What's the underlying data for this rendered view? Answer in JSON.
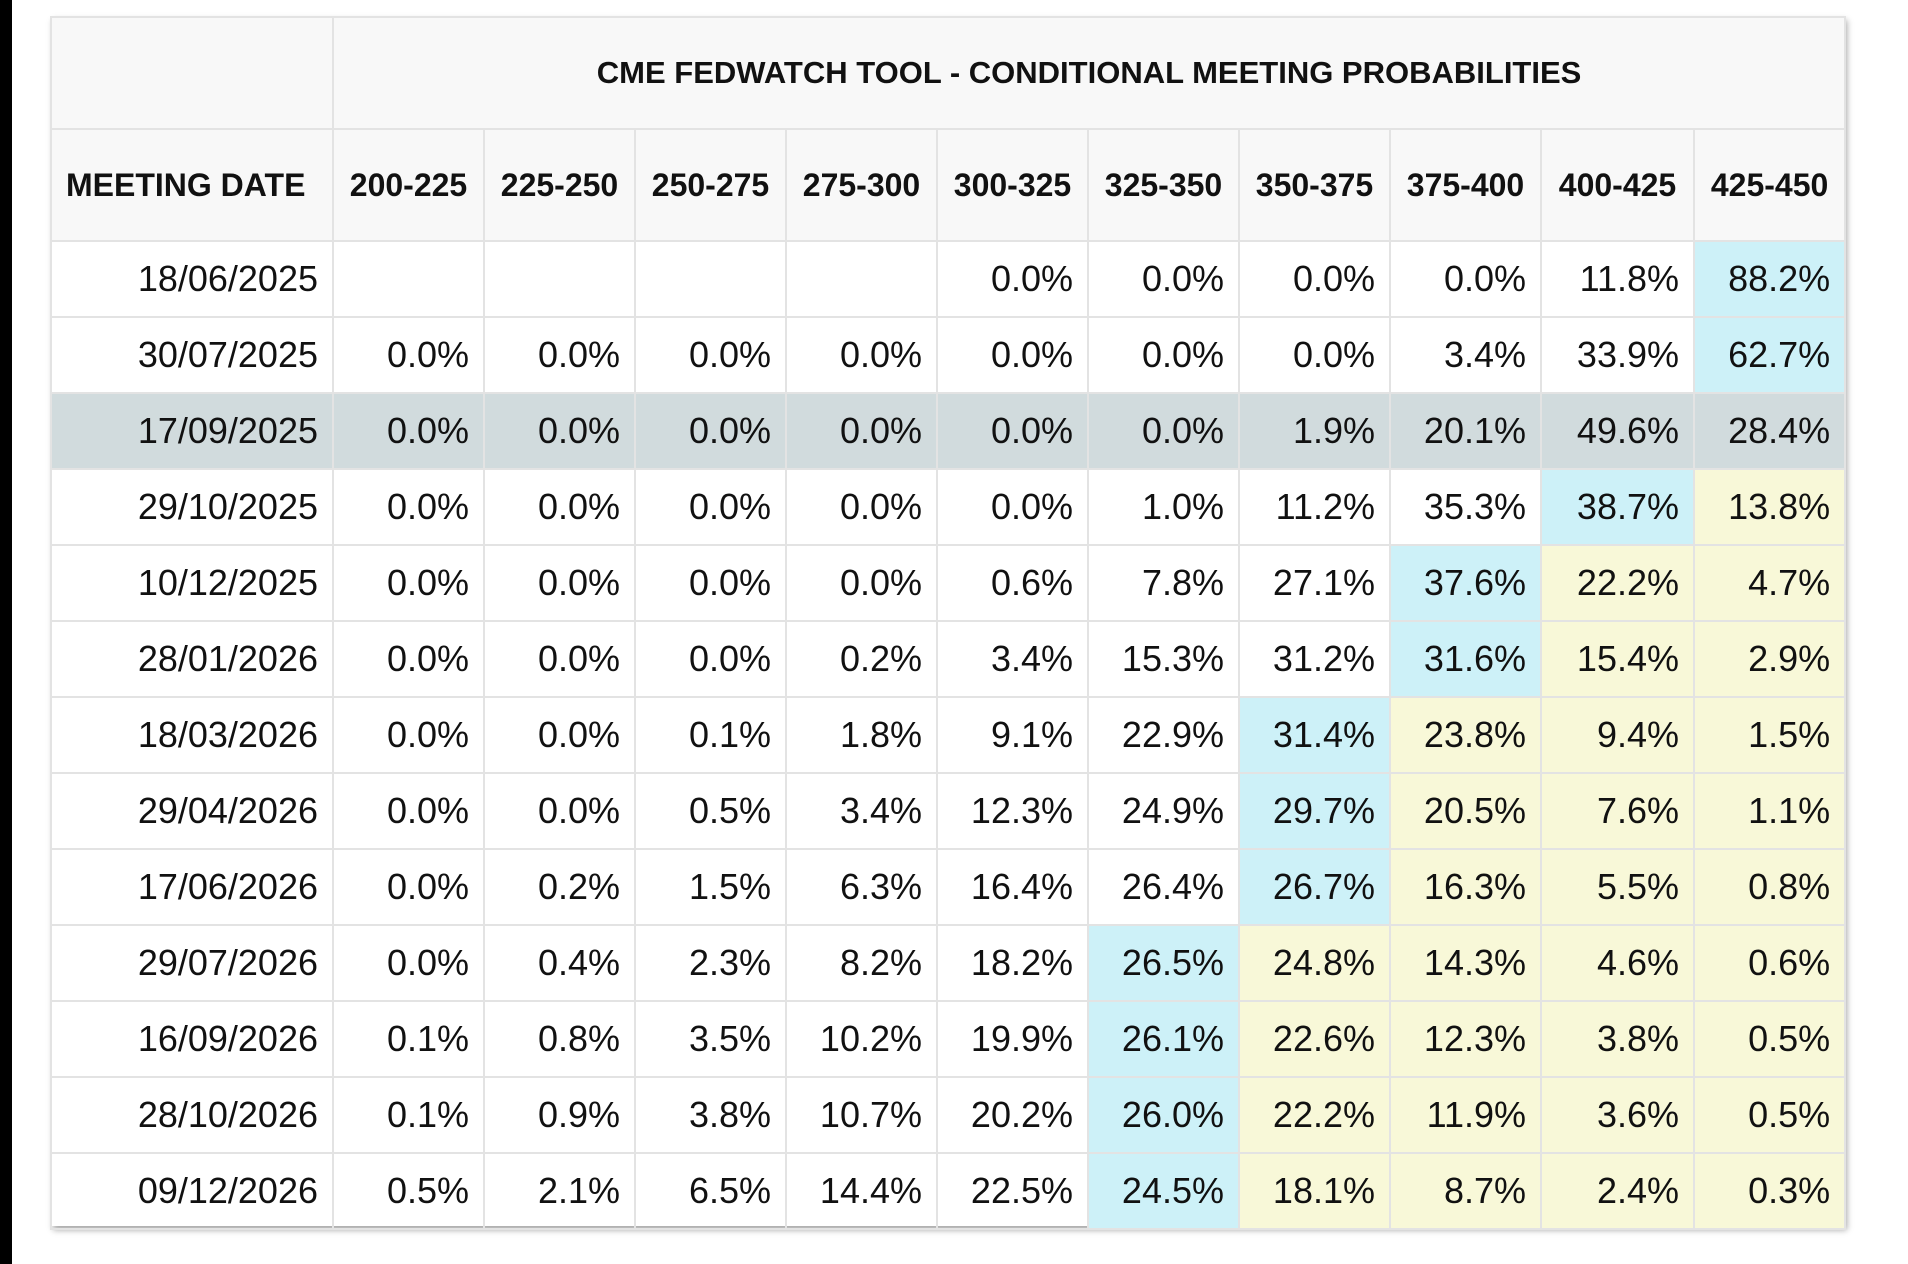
{
  "colors": {
    "highlight_row": "#d1dbdd",
    "max_cell": "#cdf1f8",
    "upper_cell": "#f8f8d8",
    "header_bg": "#f8f8f8",
    "grid": "#e3e3e3"
  },
  "chart_data": {
    "type": "table",
    "title": "CME FEDWATCH TOOL - CONDITIONAL MEETING PROBABILITIES",
    "date_header": "MEETING DATE",
    "columns": [
      "200-225",
      "225-250",
      "250-275",
      "275-300",
      "300-325",
      "325-350",
      "350-375",
      "375-400",
      "400-425",
      "425-450"
    ],
    "highlighted_row": "17/09/2025",
    "rows": [
      {
        "date": "18/06/2025",
        "values": [
          "",
          "",
          "",
          "",
          "0.0%",
          "0.0%",
          "0.0%",
          "0.0%",
          "11.8%",
          "88.2%"
        ],
        "max_index": 9,
        "upper_from": null
      },
      {
        "date": "30/07/2025",
        "values": [
          "0.0%",
          "0.0%",
          "0.0%",
          "0.0%",
          "0.0%",
          "0.0%",
          "0.0%",
          "3.4%",
          "33.9%",
          "62.7%"
        ],
        "max_index": 9,
        "upper_from": null
      },
      {
        "date": "17/09/2025",
        "values": [
          "0.0%",
          "0.0%",
          "0.0%",
          "0.0%",
          "0.0%",
          "0.0%",
          "1.9%",
          "20.1%",
          "49.6%",
          "28.4%"
        ],
        "max_index": null,
        "upper_from": null
      },
      {
        "date": "29/10/2025",
        "values": [
          "0.0%",
          "0.0%",
          "0.0%",
          "0.0%",
          "0.0%",
          "1.0%",
          "11.2%",
          "35.3%",
          "38.7%",
          "13.8%"
        ],
        "max_index": 8,
        "upper_from": 9
      },
      {
        "date": "10/12/2025",
        "values": [
          "0.0%",
          "0.0%",
          "0.0%",
          "0.0%",
          "0.6%",
          "7.8%",
          "27.1%",
          "37.6%",
          "22.2%",
          "4.7%"
        ],
        "max_index": 7,
        "upper_from": 8
      },
      {
        "date": "28/01/2026",
        "values": [
          "0.0%",
          "0.0%",
          "0.0%",
          "0.2%",
          "3.4%",
          "15.3%",
          "31.2%",
          "31.6%",
          "15.4%",
          "2.9%"
        ],
        "max_index": 7,
        "upper_from": 8
      },
      {
        "date": "18/03/2026",
        "values": [
          "0.0%",
          "0.0%",
          "0.1%",
          "1.8%",
          "9.1%",
          "22.9%",
          "31.4%",
          "23.8%",
          "9.4%",
          "1.5%"
        ],
        "max_index": 6,
        "upper_from": 7
      },
      {
        "date": "29/04/2026",
        "values": [
          "0.0%",
          "0.0%",
          "0.5%",
          "3.4%",
          "12.3%",
          "24.9%",
          "29.7%",
          "20.5%",
          "7.6%",
          "1.1%"
        ],
        "max_index": 6,
        "upper_from": 7
      },
      {
        "date": "17/06/2026",
        "values": [
          "0.0%",
          "0.2%",
          "1.5%",
          "6.3%",
          "16.4%",
          "26.4%",
          "26.7%",
          "16.3%",
          "5.5%",
          "0.8%"
        ],
        "max_index": 6,
        "upper_from": 7
      },
      {
        "date": "29/07/2026",
        "values": [
          "0.0%",
          "0.4%",
          "2.3%",
          "8.2%",
          "18.2%",
          "26.5%",
          "24.8%",
          "14.3%",
          "4.6%",
          "0.6%"
        ],
        "max_index": 5,
        "upper_from": 6
      },
      {
        "date": "16/09/2026",
        "values": [
          "0.1%",
          "0.8%",
          "3.5%",
          "10.2%",
          "19.9%",
          "26.1%",
          "22.6%",
          "12.3%",
          "3.8%",
          "0.5%"
        ],
        "max_index": 5,
        "upper_from": 6
      },
      {
        "date": "28/10/2026",
        "values": [
          "0.1%",
          "0.9%",
          "3.8%",
          "10.7%",
          "20.2%",
          "26.0%",
          "22.2%",
          "11.9%",
          "3.6%",
          "0.5%"
        ],
        "max_index": 5,
        "upper_from": 6
      },
      {
        "date": "09/12/2026",
        "values": [
          "0.5%",
          "2.1%",
          "6.5%",
          "14.4%",
          "22.5%",
          "24.5%",
          "18.1%",
          "8.7%",
          "2.4%",
          "0.3%"
        ],
        "max_index": 5,
        "upper_from": 6
      }
    ]
  }
}
